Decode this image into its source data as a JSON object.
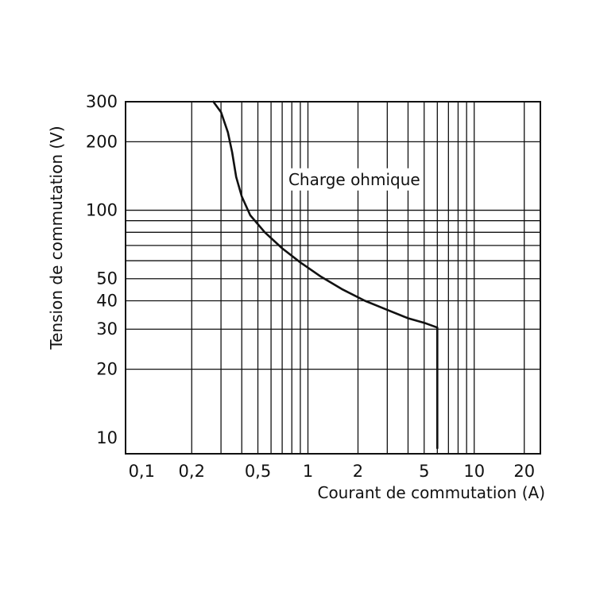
{
  "chart_data": {
    "type": "line",
    "title": "",
    "xlabel": "Courant de commutation (A)",
    "ylabel": "Tension de commutation (V)",
    "x_scale": "log",
    "y_scale": "log",
    "xlim": [
      0.08,
      25
    ],
    "ylim": [
      8.5,
      300
    ],
    "x_ticks": [
      {
        "value": 0.1,
        "label": "0,1"
      },
      {
        "value": 0.2,
        "label": "0,2"
      },
      {
        "value": 0.5,
        "label": "0,5"
      },
      {
        "value": 1,
        "label": "1"
      },
      {
        "value": 2,
        "label": "2"
      },
      {
        "value": 5,
        "label": "5"
      },
      {
        "value": 10,
        "label": "10"
      },
      {
        "value": 20,
        "label": "20"
      }
    ],
    "y_ticks": [
      {
        "value": 10,
        "label": "10"
      },
      {
        "value": 20,
        "label": "20"
      },
      {
        "value": 30,
        "label": "30"
      },
      {
        "value": 40,
        "label": "40"
      },
      {
        "value": 50,
        "label": "50"
      },
      {
        "value": 100,
        "label": "100"
      },
      {
        "value": 200,
        "label": "200"
      },
      {
        "value": 300,
        "label": "300"
      }
    ],
    "x_gridlines": [
      0.2,
      0.3,
      0.4,
      0.5,
      0.6,
      0.7,
      0.8,
      0.9,
      1,
      2,
      3,
      4,
      5,
      6,
      7,
      8,
      9,
      10,
      20
    ],
    "y_gridlines": [
      20,
      30,
      40,
      50,
      60,
      70,
      80,
      90,
      100,
      200
    ],
    "grid": true,
    "annotations": [
      {
        "text": "Charge ohmique",
        "x": 1.9,
        "y": 135
      }
    ],
    "series": [
      {
        "x": [
          0.27,
          0.3,
          0.33,
          0.35,
          0.37,
          0.4,
          0.45,
          0.55,
          0.7,
          0.9,
          1.2,
          1.6,
          2.2,
          3,
          4,
          5,
          6,
          6,
          6
        ],
        "y": [
          300,
          270,
          220,
          180,
          140,
          115,
          95,
          80,
          68,
          59,
          51,
          45,
          40,
          36.5,
          33.5,
          32,
          30.5,
          20,
          9
        ]
      }
    ]
  }
}
